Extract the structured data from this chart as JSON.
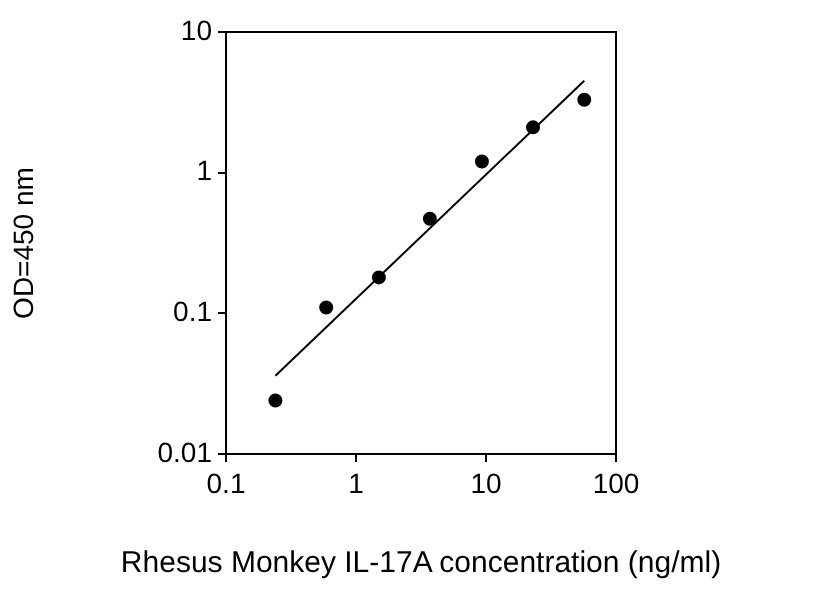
{
  "chart_data": {
    "type": "scatter",
    "xlabel": "Rhesus Monkey IL-17A concentration (ng/ml)",
    "ylabel": "OD=450 nm",
    "log": "xy",
    "grid": false,
    "legend": false,
    "marker": "circle",
    "xlim": [
      0.1,
      100
    ],
    "xticks": [
      0.1,
      1,
      10,
      100
    ],
    "ylim": [
      0.01,
      10
    ],
    "yticks": [
      0.01,
      0.1,
      1,
      10
    ],
    "series": [
      {
        "color": "#000000",
        "x": [
          0.24,
          0.59,
          1.5,
          3.7,
          9.3,
          23,
          57
        ],
        "values": [
          0.024,
          0.11,
          0.18,
          0.47,
          1.2,
          2.1,
          3.3
        ]
      },
      {
        "type": "line",
        "marker": "none",
        "color": "#000000",
        "x": [
          0.24,
          57
        ],
        "values": [
          0.036,
          4.5
        ]
      }
    ]
  }
}
